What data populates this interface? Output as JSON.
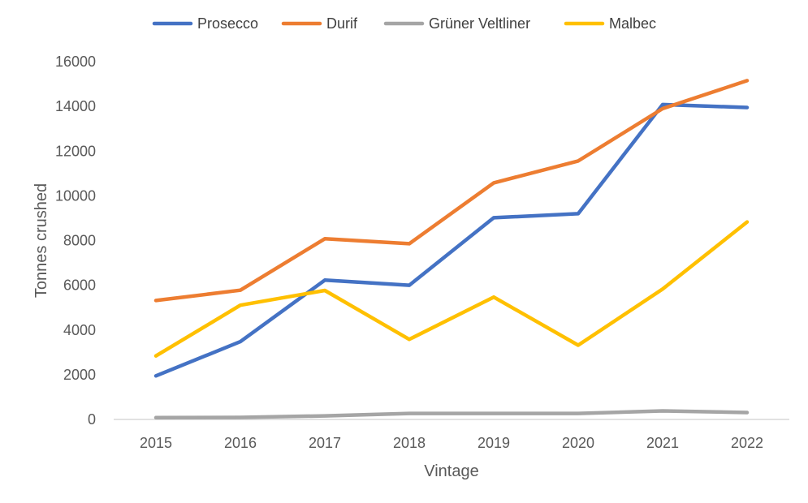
{
  "chart_data": {
    "type": "line",
    "title": "",
    "xlabel": "Vintage",
    "ylabel": "Tonnes crushed",
    "categories": [
      "2015",
      "2016",
      "2017",
      "2018",
      "2019",
      "2020",
      "2021",
      "2022"
    ],
    "ylim": [
      0,
      16000
    ],
    "yticks": [
      "0",
      "2000",
      "4000",
      "6000",
      "8000",
      "10000",
      "12000",
      "14000",
      "16000"
    ],
    "grid": false,
    "legend_position": "top",
    "series": [
      {
        "name": "Prosecco",
        "color": "#4472C4",
        "values": [
          1950,
          3480,
          6230,
          6000,
          9020,
          9200,
          14080,
          13950
        ]
      },
      {
        "name": "Durif",
        "color": "#ED7D31",
        "values": [
          5320,
          5780,
          8080,
          7860,
          10580,
          11560,
          13900,
          15150
        ]
      },
      {
        "name": "Grüner Veltliner",
        "color": "#A5A5A5",
        "values": [
          80,
          90,
          160,
          270,
          270,
          270,
          380,
          310
        ]
      },
      {
        "name": "Malbec",
        "color": "#FFC000",
        "values": [
          2840,
          5110,
          5770,
          3580,
          5470,
          3320,
          5830,
          8830
        ]
      }
    ]
  }
}
